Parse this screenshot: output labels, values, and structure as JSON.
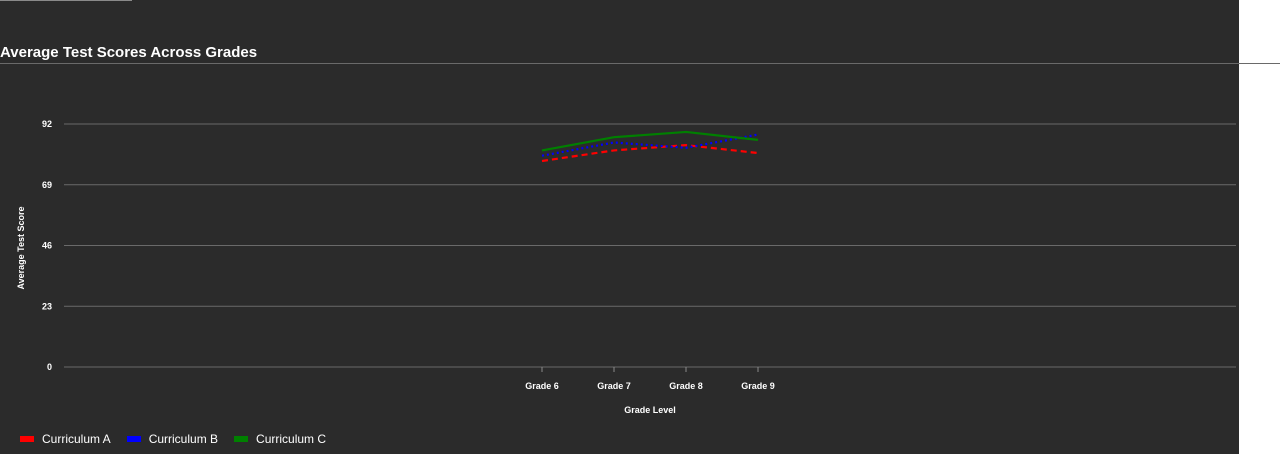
{
  "chart_data": {
    "type": "line",
    "title": "Average Test Scores Across Grades",
    "xlabel": "Grade Level",
    "ylabel": "Average Test Score",
    "categories": [
      "Grade 6",
      "Grade 7",
      "Grade 8",
      "Grade 9"
    ],
    "yticks": [
      0,
      23,
      46,
      69,
      92
    ],
    "ylim": [
      0,
      92
    ],
    "grid": true,
    "legend_position": "bottom-left",
    "series": [
      {
        "name": "Curriculum A",
        "color": "#ff0000",
        "dash": "dashed",
        "values": [
          78,
          82,
          84,
          81
        ]
      },
      {
        "name": "Curriculum B",
        "color": "#0000ff",
        "dash": "dotted",
        "values": [
          80,
          85,
          83,
          88
        ]
      },
      {
        "name": "Curriculum C",
        "color": "#008000",
        "dash": "solid",
        "values": [
          82,
          87,
          89,
          86
        ]
      }
    ]
  }
}
